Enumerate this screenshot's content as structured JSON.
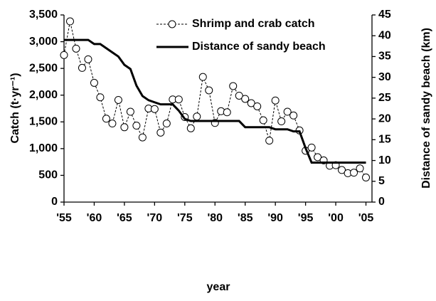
{
  "chart_data": {
    "type": "line",
    "x_label": "year",
    "y_label": "Catch (t·yr⁻¹)",
    "y2_label": "Distance of sandy beach (km)",
    "x": [
      1955,
      1956,
      1957,
      1958,
      1959,
      1960,
      1961,
      1962,
      1963,
      1964,
      1965,
      1966,
      1967,
      1968,
      1969,
      1970,
      1971,
      1972,
      1973,
      1974,
      1975,
      1976,
      1977,
      1978,
      1979,
      1980,
      1981,
      1982,
      1983,
      1984,
      1985,
      1986,
      1987,
      1988,
      1989,
      1990,
      1991,
      1992,
      1993,
      1994,
      1995,
      1996,
      1997,
      1998,
      1999,
      2000,
      2001,
      2002,
      2003,
      2004,
      2005
    ],
    "xlim": [
      1955,
      2006
    ],
    "xticks": [
      {
        "value": 1955,
        "label": "'55"
      },
      {
        "value": 1960,
        "label": "'60"
      },
      {
        "value": 1965,
        "label": "'65"
      },
      {
        "value": 1970,
        "label": "'70"
      },
      {
        "value": 1975,
        "label": "'75"
      },
      {
        "value": 1980,
        "label": "'80"
      },
      {
        "value": 1985,
        "label": "'85"
      },
      {
        "value": 1990,
        "label": "'90"
      },
      {
        "value": 1995,
        "label": "'95"
      },
      {
        "value": 2000,
        "label": "'00"
      },
      {
        "value": 2005,
        "label": "'05"
      }
    ],
    "ylim": [
      0,
      3500
    ],
    "yticks": [
      0,
      500,
      {
        "value": 1000,
        "label": "1,000"
      },
      {
        "value": 1500,
        "label": "1,500"
      },
      {
        "value": 2000,
        "label": "2,000"
      },
      {
        "value": 2500,
        "label": "2,500"
      },
      {
        "value": 3000,
        "label": "3,000"
      },
      {
        "value": 3500,
        "label": "3,500"
      }
    ],
    "y2lim": [
      0,
      45
    ],
    "y2ticks": [
      0,
      5,
      10,
      15,
      20,
      25,
      30,
      35,
      40,
      45
    ],
    "legend": "top",
    "series": [
      {
        "name": "Shrimp and crab catch",
        "color": "#000000",
        "axis": "y",
        "style": "dashed-markers",
        "values": [
          2750,
          3380,
          2870,
          2510,
          2670,
          2230,
          1960,
          1560,
          1470,
          1910,
          1400,
          1690,
          1430,
          1210,
          1750,
          1740,
          1300,
          1470,
          1920,
          1920,
          1590,
          1380,
          1600,
          2340,
          2090,
          1480,
          1700,
          1680,
          2170,
          1990,
          1930,
          1850,
          1790,
          1530,
          1150,
          1900,
          1510,
          1690,
          1620,
          1340,
          960,
          1020,
          840,
          780,
          680,
          690,
          600,
          540,
          550,
          630,
          460
        ]
      },
      {
        "name": "Distance of sandy beach",
        "color": "#000000",
        "axis": "y2",
        "style": "solid",
        "values": [
          39,
          39,
          39,
          39,
          39,
          38,
          38,
          37,
          36,
          35,
          33,
          32,
          28,
          25.5,
          24.5,
          24,
          23.5,
          23.5,
          23.5,
          22,
          20,
          19.5,
          19.5,
          19.5,
          19.5,
          19.5,
          19.5,
          19.5,
          19.5,
          19.5,
          18,
          18,
          18,
          18,
          18,
          17.5,
          17.5,
          17.5,
          17,
          17,
          13,
          9.5,
          9.5,
          9.5,
          9.5,
          9.5,
          9.5,
          9.5,
          9.5,
          9.5,
          9.5
        ]
      }
    ]
  }
}
